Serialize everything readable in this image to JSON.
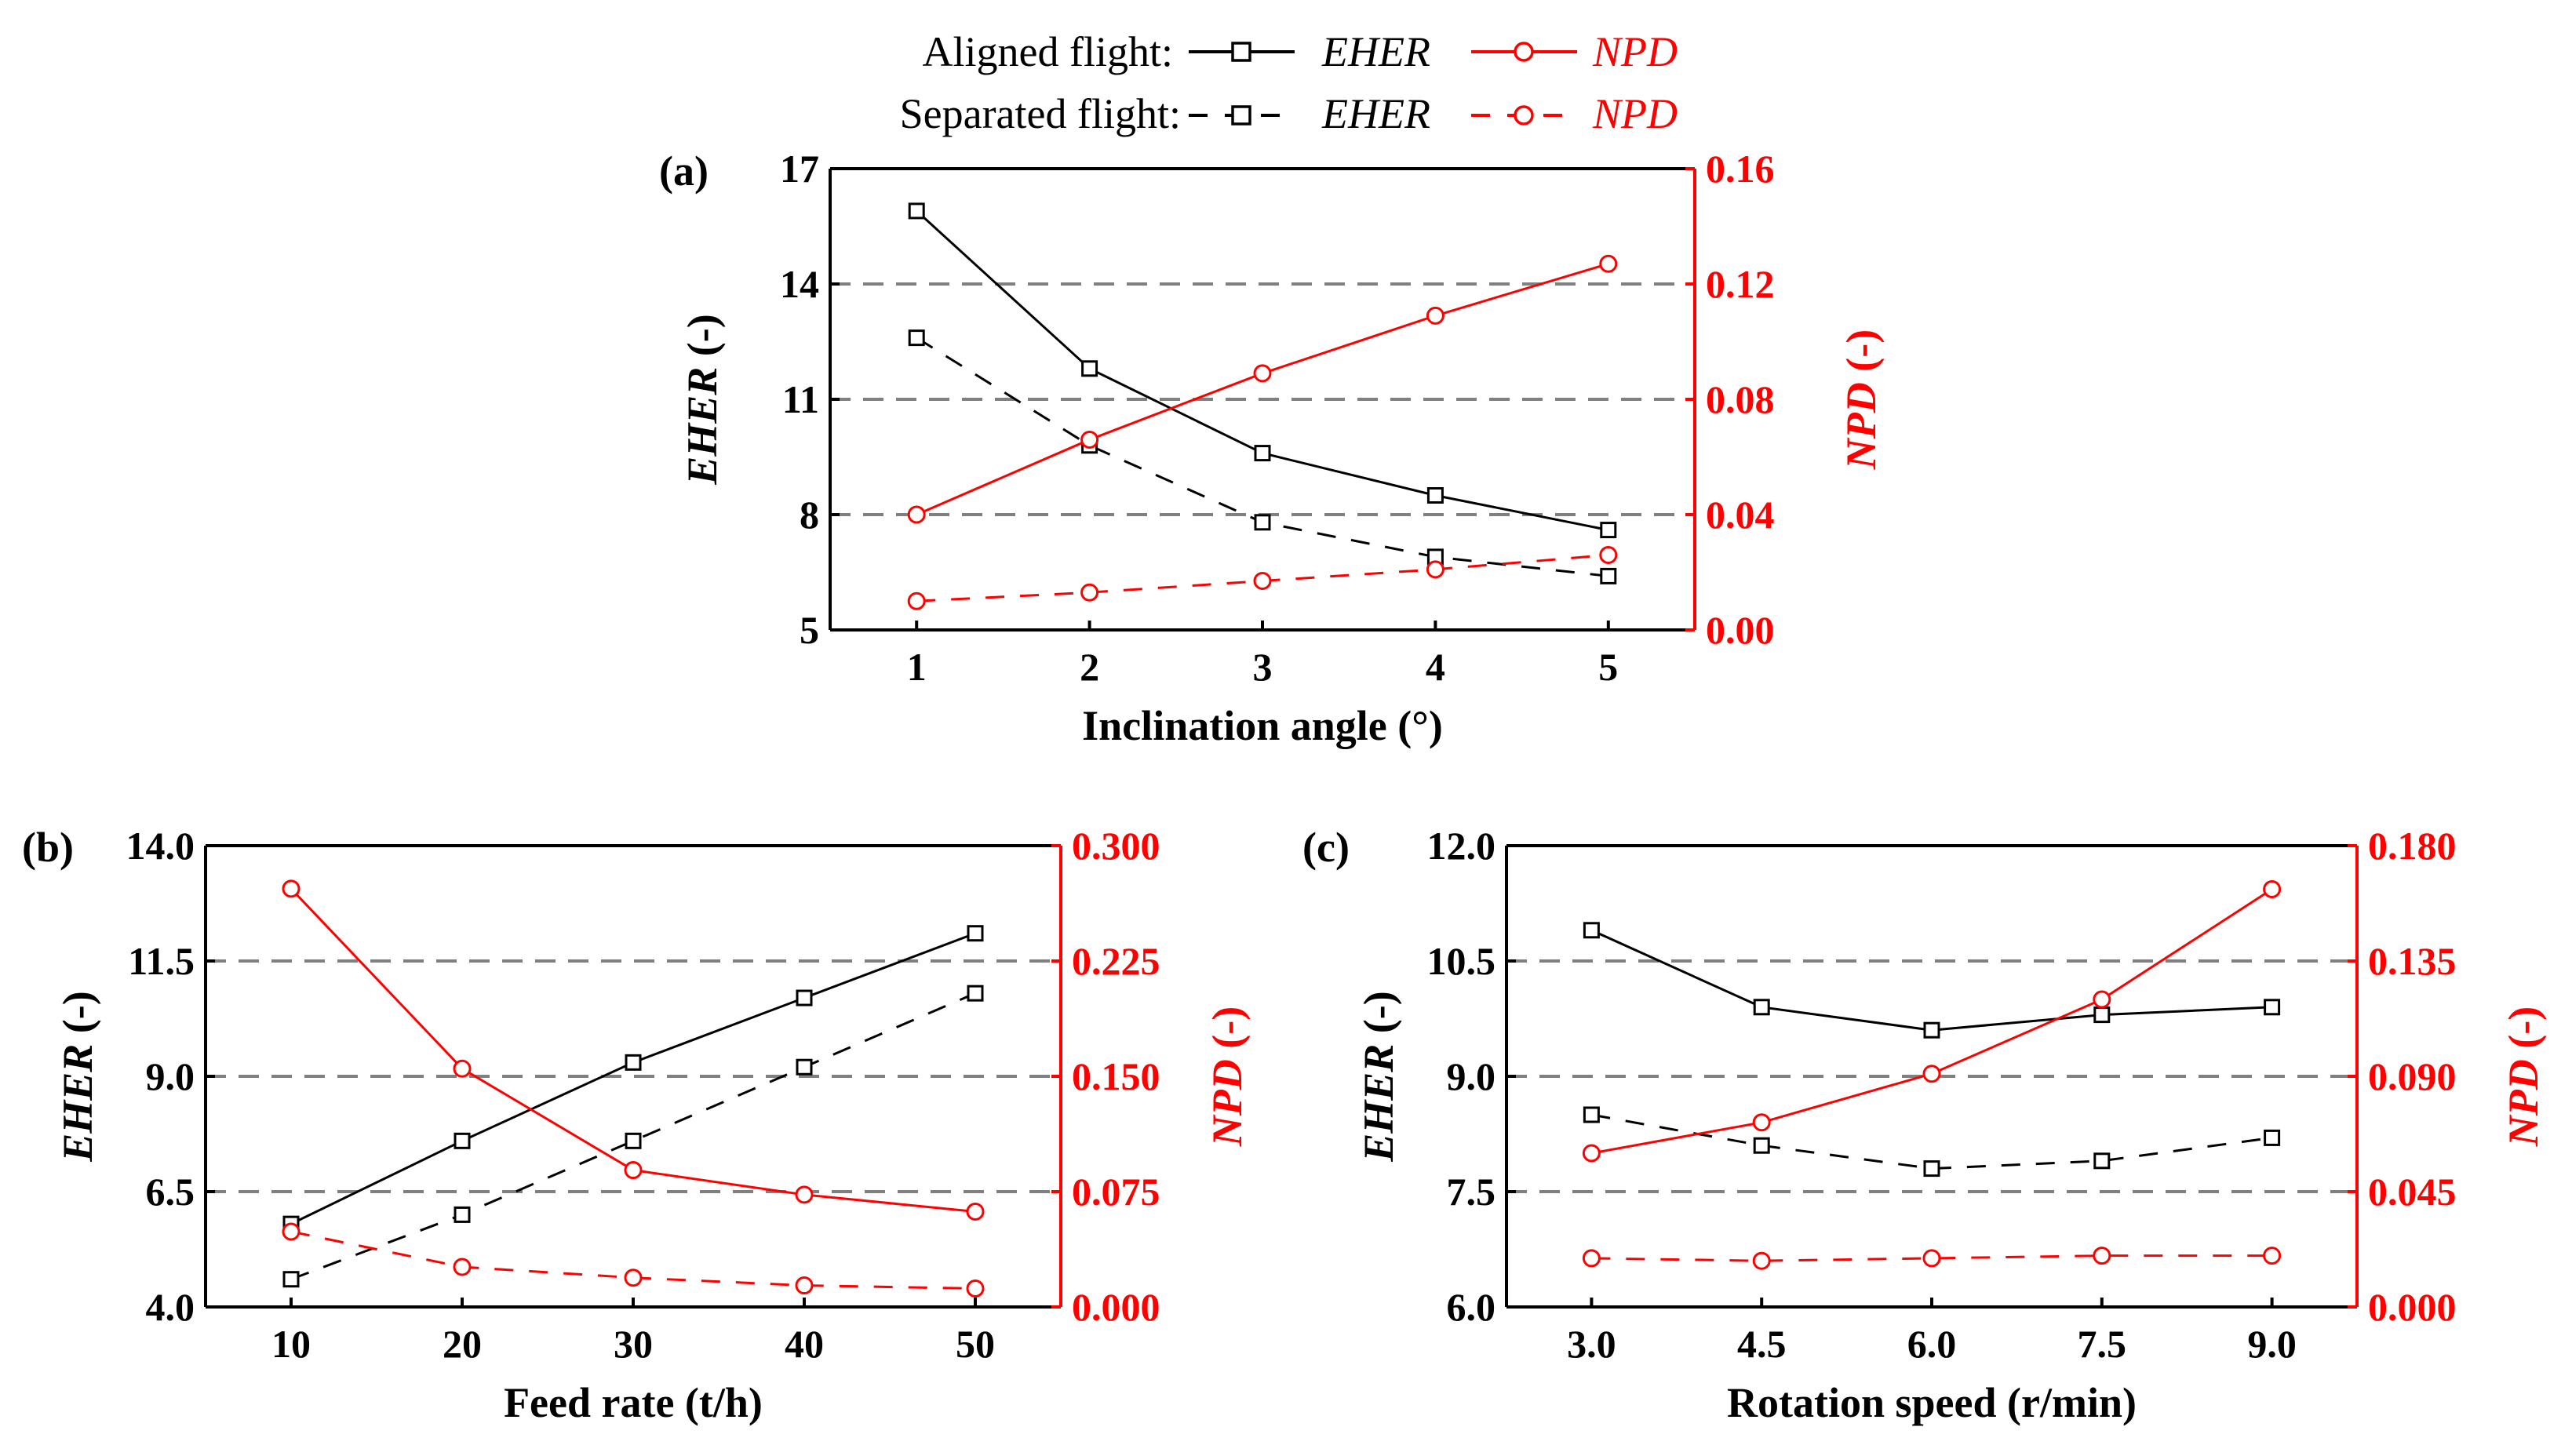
{
  "legend": {
    "aligned_label": "Aligned  flight:",
    "separated_label": "Separated flight:",
    "eher_label": "EHER",
    "npd_label": "NPD"
  },
  "colors": {
    "eher": "#000000",
    "npd": "#ff0000",
    "grid": "#808080"
  },
  "chart_data": [
    {
      "panel": "(a)",
      "type": "line",
      "title": "",
      "xlabel": "Inclination angle (°)",
      "ylabel_left_var": "EHER",
      "ylabel_left_unit": " (-)",
      "ylabel_right_var": "NPD",
      "ylabel_right_unit": " (-)",
      "x": [
        1,
        2,
        3,
        4,
        5
      ],
      "x_tick_labels": [
        "1",
        "2",
        "3",
        "4",
        "5"
      ],
      "x_range": [
        0.5,
        5.5
      ],
      "y_left_range": [
        5,
        17
      ],
      "y_left_ticks": [
        "5",
        "8",
        "11",
        "14",
        "17"
      ],
      "y_right_range": [
        0,
        0.16
      ],
      "y_right_ticks": [
        "0.00",
        "0.04",
        "0.08",
        "0.12",
        "0.16"
      ],
      "grid_y_left": [
        8,
        11,
        14
      ],
      "series": [
        {
          "name": "EHER (Aligned flight)",
          "axis": "left",
          "style": "solid",
          "marker": "square",
          "values": [
            15.9,
            11.8,
            9.6,
            8.5,
            7.6
          ]
        },
        {
          "name": "EHER (Separated flight)",
          "axis": "left",
          "style": "dashed",
          "marker": "square",
          "values": [
            12.6,
            9.8,
            7.8,
            6.9,
            6.4
          ]
        },
        {
          "name": "NPD (Aligned flight)",
          "axis": "right",
          "style": "solid",
          "marker": "circle",
          "values": [
            0.04,
            0.066,
            0.089,
            0.109,
            0.127
          ]
        },
        {
          "name": "NPD (Separated flight)",
          "axis": "right",
          "style": "dashed",
          "marker": "circle",
          "values": [
            0.01,
            0.013,
            0.017,
            0.021,
            0.026
          ]
        }
      ]
    },
    {
      "panel": "(b)",
      "type": "line",
      "title": "",
      "xlabel": "Feed rate (t/h)",
      "ylabel_left_var": "EHER",
      "ylabel_left_unit": " (-)",
      "ylabel_right_var": "NPD",
      "ylabel_right_unit": " (-)",
      "x": [
        10,
        20,
        30,
        40,
        50
      ],
      "x_tick_labels": [
        "10",
        "20",
        "30",
        "40",
        "50"
      ],
      "x_range": [
        5,
        55
      ],
      "y_left_range": [
        4,
        14
      ],
      "y_left_ticks": [
        "4.0",
        "6.5",
        "9.0",
        "11.5",
        "14.0"
      ],
      "y_right_range": [
        0,
        0.3
      ],
      "y_right_ticks": [
        "0.000",
        "0.075",
        "0.150",
        "0.225",
        "0.300"
      ],
      "grid_y_left": [
        6.5,
        9.0,
        11.5
      ],
      "series": [
        {
          "name": "EHER (Aligned flight)",
          "axis": "left",
          "style": "solid",
          "marker": "square",
          "values": [
            5.8,
            7.6,
            9.3,
            10.7,
            12.1
          ]
        },
        {
          "name": "EHER (Separated flight)",
          "axis": "left",
          "style": "dashed",
          "marker": "square",
          "values": [
            4.6,
            6.0,
            7.6,
            9.2,
            10.8
          ]
        },
        {
          "name": "NPD (Aligned flight)",
          "axis": "right",
          "style": "solid",
          "marker": "circle",
          "values": [
            0.272,
            0.155,
            0.089,
            0.073,
            0.062
          ]
        },
        {
          "name": "NPD (Separated flight)",
          "axis": "right",
          "style": "dashed",
          "marker": "circle",
          "values": [
            0.049,
            0.026,
            0.019,
            0.014,
            0.012
          ]
        }
      ]
    },
    {
      "panel": "(c)",
      "type": "line",
      "title": "",
      "xlabel": "Rotation speed (r/min)",
      "ylabel_left_var": "EHER",
      "ylabel_left_unit": " (-)",
      "ylabel_right_var": "NPD",
      "ylabel_right_unit": " (-)",
      "x": [
        3.0,
        4.5,
        6.0,
        7.5,
        9.0
      ],
      "x_tick_labels": [
        "3.0",
        "4.5",
        "6.0",
        "7.5",
        "9.0"
      ],
      "x_range": [
        2.25,
        9.75
      ],
      "y_left_range": [
        6,
        12
      ],
      "y_left_ticks": [
        "6.0",
        "7.5",
        "9.0",
        "10.5",
        "12.0"
      ],
      "y_right_range": [
        0,
        0.18
      ],
      "y_right_ticks": [
        "0.000",
        "0.045",
        "0.090",
        "0.135",
        "0.180"
      ],
      "grid_y_left": [
        7.5,
        9.0,
        10.5
      ],
      "series": [
        {
          "name": "EHER (Aligned flight)",
          "axis": "left",
          "style": "solid",
          "marker": "square",
          "values": [
            10.9,
            9.9,
            9.6,
            9.8,
            9.9
          ]
        },
        {
          "name": "EHER (Separated flight)",
          "axis": "left",
          "style": "dashed",
          "marker": "square",
          "values": [
            8.5,
            8.1,
            7.8,
            7.9,
            8.2
          ]
        },
        {
          "name": "NPD (Aligned flight)",
          "axis": "right",
          "style": "solid",
          "marker": "circle",
          "values": [
            0.06,
            0.072,
            0.091,
            0.12,
            0.163
          ]
        },
        {
          "name": "NPD (Separated flight)",
          "axis": "right",
          "style": "dashed",
          "marker": "circle",
          "values": [
            0.019,
            0.018,
            0.019,
            0.02,
            0.02
          ]
        }
      ]
    }
  ]
}
